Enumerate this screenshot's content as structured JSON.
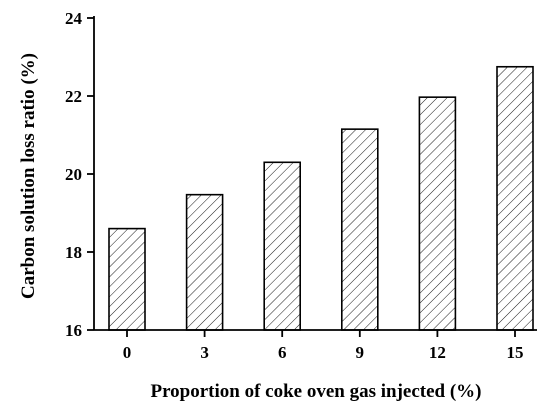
{
  "chart_data": {
    "type": "bar",
    "title": "",
    "xlabel": "Proportion of coke oven gas injected (%)",
    "ylabel": "Carbon solution loss ratio (%)",
    "categories": [
      "0",
      "3",
      "6",
      "9",
      "12",
      "15"
    ],
    "values": [
      18.6,
      19.47,
      20.3,
      21.15,
      21.97,
      22.75
    ],
    "ylim": [
      16,
      24
    ],
    "yticks": [
      "16",
      "18",
      "20",
      "22",
      "24"
    ],
    "bar_fill": "diagonal-hatch",
    "colors": {
      "bar_stroke": "#000000",
      "hatch": "#000000",
      "axis": "#000000",
      "background": "#ffffff"
    },
    "grid": false,
    "legend": "none"
  }
}
